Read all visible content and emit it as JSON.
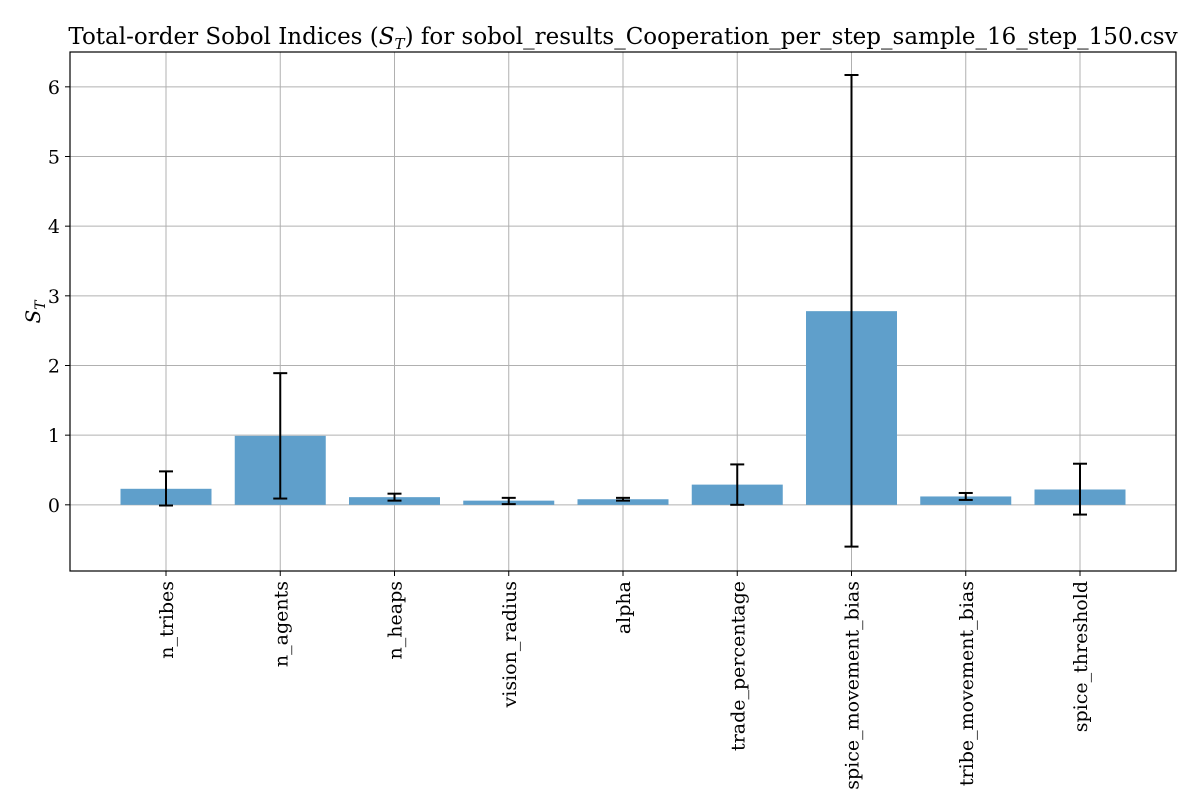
{
  "chart_data": {
    "type": "bar",
    "title": "Total-order Sobol Indices (S_T) for sobol_results_Cooperation_per_step_sample_16_step_150.csv",
    "title_parts": [
      "Total-order Sobol Indices (",
      "S",
      "T",
      ") for sobol_results_Cooperation_per_step_sample_16_step_150.csv"
    ],
    "xlabel": "",
    "ylabel": "S_T",
    "ylabel_parts": [
      "S",
      "T"
    ],
    "categories": [
      "n_tribes",
      "n_agents",
      "n_heaps",
      "vision_radius",
      "alpha",
      "trade_percentage",
      "spice_movement_bias",
      "tribe_movement_bias",
      "spice_threshold"
    ],
    "values": [
      0.23,
      0.99,
      0.11,
      0.06,
      0.08,
      0.29,
      2.78,
      0.12,
      0.22
    ],
    "error_low": [
      -0.01,
      0.09,
      0.06,
      0.01,
      0.06,
      0.0,
      -0.6,
      0.07,
      -0.14
    ],
    "error_high": [
      0.48,
      1.89,
      0.16,
      0.1,
      0.1,
      0.58,
      6.17,
      0.17,
      0.59
    ],
    "ylim": [
      -0.95,
      6.5
    ],
    "yticks": [
      0,
      1,
      2,
      3,
      4,
      5,
      6
    ],
    "grid": true,
    "bar_color": "#5f9fcb"
  }
}
